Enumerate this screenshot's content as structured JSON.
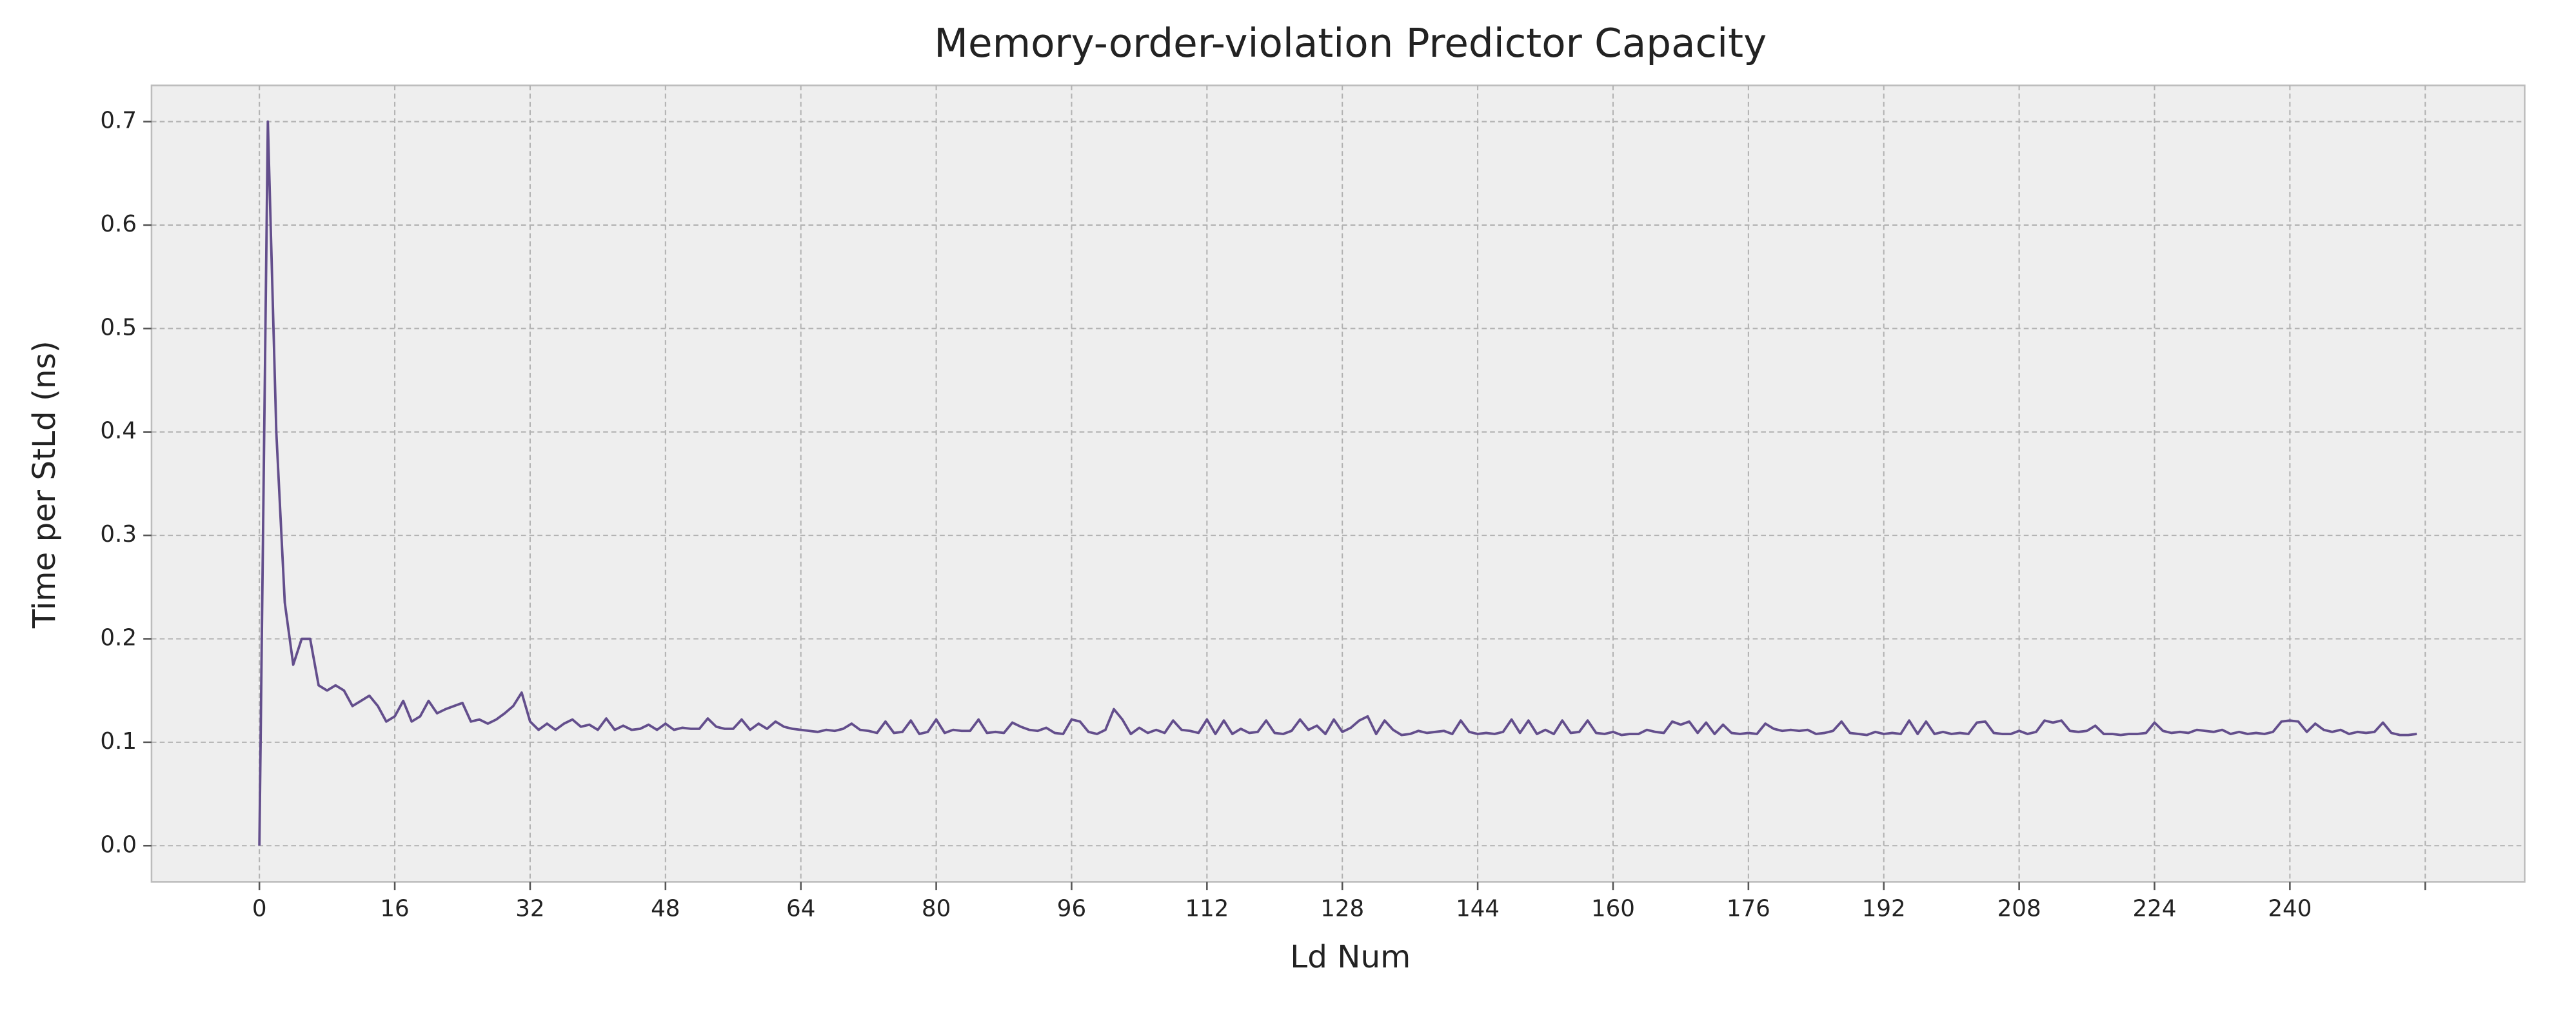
{
  "chart_data": {
    "type": "line",
    "title": "Memory-order-violation Predictor Capacity",
    "xlabel": "Ld Num",
    "ylabel": "Time per StLd (ns)",
    "xlim": [
      -12.75,
      267.75
    ],
    "ylim": [
      -0.035,
      0.735
    ],
    "xticks": [
      0,
      16,
      32,
      48,
      64,
      80,
      96,
      112,
      128,
      144,
      160,
      176,
      192,
      208,
      224,
      240,
      {
        "value": 256,
        "label": null
      }
    ],
    "yticks": [
      {
        "value": 0,
        "label": "0.0"
      },
      0.1,
      0.2,
      0.3,
      0.4,
      0.5,
      0.6,
      0.7
    ],
    "grid": true,
    "x": [
      0,
      1,
      2,
      3,
      4,
      5,
      6,
      7,
      8,
      9,
      10,
      11,
      12,
      13,
      14,
      15,
      16,
      17,
      18,
      19,
      20,
      21,
      22,
      23,
      24,
      25,
      26,
      27,
      28,
      29,
      30,
      31,
      32,
      33,
      34,
      35,
      36,
      37,
      38,
      39,
      40,
      41,
      42,
      43,
      44,
      45,
      46,
      47,
      48,
      49,
      50,
      51,
      52,
      53,
      54,
      55,
      56,
      57,
      58,
      59,
      60,
      61,
      62,
      63,
      64,
      65,
      66,
      67,
      68,
      69,
      70,
      71,
      72,
      73,
      74,
      75,
      76,
      77,
      78,
      79,
      80,
      81,
      82,
      83,
      84,
      85,
      86,
      87,
      88,
      89,
      90,
      91,
      92,
      93,
      94,
      95,
      96,
      97,
      98,
      99,
      100,
      101,
      102,
      103,
      104,
      105,
      106,
      107,
      108,
      109,
      110,
      111,
      112,
      113,
      114,
      115,
      116,
      117,
      118,
      119,
      120,
      121,
      122,
      123,
      124,
      125,
      126,
      127,
      128,
      129,
      130,
      131,
      132,
      133,
      134,
      135,
      136,
      137,
      138,
      139,
      140,
      141,
      142,
      143,
      144,
      145,
      146,
      147,
      148,
      149,
      150,
      151,
      152,
      153,
      154,
      155,
      156,
      157,
      158,
      159,
      160,
      161,
      162,
      163,
      164,
      165,
      166,
      167,
      168,
      169,
      170,
      171,
      172,
      173,
      174,
      175,
      176,
      177,
      178,
      179,
      180,
      181,
      182,
      183,
      184,
      185,
      186,
      187,
      188,
      189,
      190,
      191,
      192,
      193,
      194,
      195,
      196,
      197,
      198,
      199,
      200,
      201,
      202,
      203,
      204,
      205,
      206,
      207,
      208,
      209,
      210,
      211,
      212,
      213,
      214,
      215,
      216,
      217,
      218,
      219,
      220,
      221,
      222,
      223,
      224,
      225,
      226,
      227,
      228,
      229,
      230,
      231,
      232,
      233,
      234,
      235,
      236,
      237,
      238,
      239,
      240,
      241,
      242,
      243,
      244,
      245,
      246,
      247,
      248,
      249,
      250,
      251,
      252,
      253,
      254,
      255
    ],
    "series": [
      {
        "name": "Time per StLd",
        "color": "#634e8c",
        "values": [
          0,
          0.7,
          0.4,
          0.235,
          0.175,
          0.2,
          0.2,
          0.155,
          0.15,
          0.155,
          0.15,
          0.135,
          0.14,
          0.145,
          0.135,
          0.12,
          0.125,
          0.14,
          0.12,
          0.125,
          0.14,
          0.128,
          0.132,
          0.135,
          0.138,
          0.12,
          0.122,
          0.118,
          0.122,
          0.128,
          0.135,
          0.148,
          0.12,
          0.112,
          0.118,
          0.112,
          0.118,
          0.122,
          0.115,
          0.117,
          0.112,
          0.123,
          0.112,
          0.116,
          0.112,
          0.113,
          0.117,
          0.112,
          0.118,
          0.112,
          0.114,
          0.113,
          0.113,
          0.123,
          0.115,
          0.113,
          0.113,
          0.122,
          0.112,
          0.118,
          0.113,
          0.12,
          0.115,
          0.113,
          0.112,
          0.111,
          0.11,
          0.112,
          0.111,
          0.113,
          0.118,
          0.112,
          0.111,
          0.109,
          0.12,
          0.109,
          0.11,
          0.121,
          0.108,
          0.11,
          0.122,
          0.109,
          0.112,
          0.111,
          0.111,
          0.122,
          0.109,
          0.11,
          0.109,
          0.119,
          0.115,
          0.112,
          0.111,
          0.114,
          0.109,
          0.108,
          0.122,
          0.12,
          0.11,
          0.108,
          0.112,
          0.132,
          0.122,
          0.108,
          0.114,
          0.109,
          0.112,
          0.109,
          0.121,
          0.112,
          0.111,
          0.109,
          0.122,
          0.108,
          0.121,
          0.108,
          0.113,
          0.109,
          0.11,
          0.121,
          0.109,
          0.108,
          0.111,
          0.122,
          0.112,
          0.116,
          0.108,
          0.122,
          0.11,
          0.114,
          0.121,
          0.125,
          0.108,
          0.121,
          0.112,
          0.107,
          0.108,
          0.111,
          0.109,
          0.11,
          0.111,
          0.108,
          0.121,
          0.11,
          0.108,
          0.109,
          0.108,
          0.11,
          0.122,
          0.109,
          0.121,
          0.108,
          0.112,
          0.108,
          0.121,
          0.109,
          0.11,
          0.121,
          0.109,
          0.108,
          0.11,
          0.107,
          0.108,
          0.108,
          0.112,
          0.11,
          0.109,
          0.12,
          0.117,
          0.12,
          0.109,
          0.119,
          0.108,
          0.117,
          0.109,
          0.108,
          0.109,
          0.108,
          0.118,
          0.113,
          0.111,
          0.112,
          0.111,
          0.112,
          0.108,
          0.109,
          0.111,
          0.12,
          0.109,
          0.108,
          0.107,
          0.11,
          0.108,
          0.109,
          0.108,
          0.121,
          0.108,
          0.12,
          0.108,
          0.11,
          0.108,
          0.109,
          0.108,
          0.119,
          0.12,
          0.109,
          0.108,
          0.108,
          0.111,
          0.108,
          0.11,
          0.121,
          0.119,
          0.121,
          0.111,
          0.11,
          0.111,
          0.116,
          0.108,
          0.108,
          0.107,
          0.108,
          0.108,
          0.109,
          0.119,
          0.111,
          0.109,
          0.11,
          0.109,
          0.112,
          0.111,
          0.11,
          0.112,
          0.108,
          0.11,
          0.108,
          0.109,
          0.108,
          0.11,
          0.12,
          0.121,
          0.12,
          0.11,
          0.118,
          0.112,
          0.11,
          0.112,
          0.108,
          0.11,
          0.109,
          0.11,
          0.119,
          0.109,
          0.107,
          0.107,
          0.108
        ]
      }
    ]
  }
}
